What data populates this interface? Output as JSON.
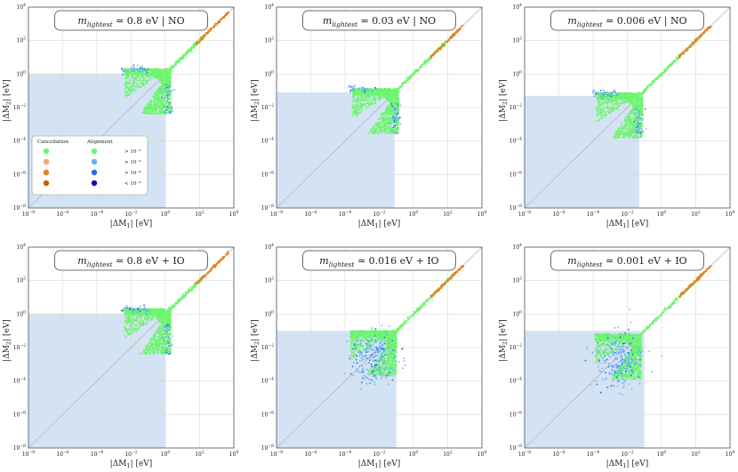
{
  "chart_data": [
    {
      "type": "scatter",
      "title_label": "m_lightest = 0.8 eV | NO",
      "title": {
        "mvar": "m",
        "sub": "lightest",
        "rest": " = 0.8 eV  |  NO"
      },
      "xlabel": {
        "pre": "|ΔM",
        "sub": "1",
        "post": "| [eV]"
      },
      "ylabel": {
        "pre": "|ΔM",
        "sub": "2",
        "post": "| [eV]"
      },
      "xlim_log10": [
        -8,
        4
      ],
      "ylim_log10": [
        -8,
        4
      ],
      "shaded_region_log10": {
        "x_max": 0.0,
        "y_max": 0.0
      },
      "ordering": "NO",
      "mlight": 0.8
    },
    {
      "type": "scatter",
      "title_label": "m_lightest = 0.03 eV | NO",
      "title": {
        "mvar": "m",
        "sub": "lightest",
        "rest": " = 0.03 eV  |  NO"
      },
      "xlabel": {
        "pre": "|ΔM",
        "sub": "1",
        "post": "| [eV]"
      },
      "ylabel": {
        "pre": "|ΔM",
        "sub": "2",
        "post": "| [eV]"
      },
      "xlim_log10": [
        -8,
        4
      ],
      "ylim_log10": [
        -8,
        4
      ],
      "shaded_region_log10": {
        "x_max": -1.1,
        "y_max": -1.1
      },
      "ordering": "NO",
      "mlight": 0.03
    },
    {
      "type": "scatter",
      "title_label": "m_lightest = 0.006 eV | NO",
      "title": {
        "mvar": "m",
        "sub": "lightest",
        "rest": " = 0.006 eV  |  NO"
      },
      "xlabel": {
        "pre": "|ΔM",
        "sub": "1",
        "post": "| [eV]"
      },
      "ylabel": {
        "pre": "|ΔM",
        "sub": "2",
        "post": "| [eV]"
      },
      "xlim_log10": [
        -8,
        4
      ],
      "ylim_log10": [
        -8,
        4
      ],
      "shaded_region_log10": {
        "x_max": -1.3,
        "y_max": -1.3
      },
      "ordering": "NO",
      "mlight": 0.006
    },
    {
      "type": "scatter",
      "title_label": "m_lightest = 0.8 eV + IO",
      "title": {
        "mvar": "m",
        "sub": "lightest",
        "rest": " = 0.8 eV + IO"
      },
      "xlabel": {
        "pre": "|ΔM",
        "sub": "1",
        "post": "| [eV]"
      },
      "ylabel": {
        "pre": "|ΔM",
        "sub": "2",
        "post": "| [eV]"
      },
      "xlim_log10": [
        -8,
        4
      ],
      "ylim_log10": [
        -8,
        4
      ],
      "shaded_region_log10": {
        "x_max": 0.0,
        "y_max": 0.0
      },
      "ordering": "IO",
      "mlight": 0.8
    },
    {
      "type": "scatter",
      "title_label": "m_lightest = 0.016 eV + IO",
      "title": {
        "mvar": "m",
        "sub": "lightest",
        "rest": " = 0.016 eV + IO"
      },
      "xlabel": {
        "pre": "|ΔM",
        "sub": "1",
        "post": "| [eV]"
      },
      "ylabel": {
        "pre": "|ΔM",
        "sub": "2",
        "post": "| [eV]"
      },
      "xlim_log10": [
        -8,
        4
      ],
      "ylim_log10": [
        -8,
        4
      ],
      "shaded_region_log10": {
        "x_max": -1.0,
        "y_max": -1.0
      },
      "ordering": "IO",
      "mlight": 0.016
    },
    {
      "type": "scatter",
      "title_label": "m_lightest = 0.001 eV + IO",
      "title": {
        "mvar": "m",
        "sub": "lightest",
        "rest": " = 0.001 eV + IO"
      },
      "xlabel": {
        "pre": "|ΔM",
        "sub": "1",
        "post": "| [eV]"
      },
      "ylabel": {
        "pre": "|ΔM",
        "sub": "2",
        "post": "| [eV]"
      },
      "xlim_log10": [
        -8,
        4
      ],
      "ylim_log10": [
        -8,
        4
      ],
      "shaded_region_log10": {
        "x_max": -1.0,
        "y_max": -1.0
      },
      "ordering": "IO",
      "mlight": 0.001
    }
  ],
  "tick_exponents": [
    -8,
    -6,
    -4,
    -2,
    0,
    2,
    4
  ],
  "tick_labels": [
    {
      "base": "10",
      "exp": "−8"
    },
    {
      "base": "10",
      "exp": "−6"
    },
    {
      "base": "10",
      "exp": "−4"
    },
    {
      "base": "10",
      "exp": "−2"
    },
    {
      "base": "10",
      "exp": "0"
    },
    {
      "base": "10",
      "exp": "2"
    },
    {
      "base": "10",
      "exp": "4"
    }
  ],
  "legend": {
    "panel_index": 0,
    "header_cancellation": "Cancellation",
    "header_alignment": "Alignment",
    "entries": [
      {
        "threshold_text": "> 10⁻²",
        "cancel_color": "#6ef56e",
        "align_color": "#6ef56e"
      },
      {
        "threshold_text": "> 10⁻³",
        "cancel_color": "#f4a86a",
        "align_color": "#6aaef5"
      },
      {
        "threshold_text": "> 10⁻⁴",
        "cancel_color": "#e8801e",
        "align_color": "#1f6fe8"
      },
      {
        "threshold_text": "< 10⁻⁴",
        "cancel_color": "#c0600a",
        "align_color": "#1010a8"
      }
    ]
  },
  "colors": {
    "shade": "#d3e3f3",
    "green": "#6ef56e",
    "orange": "#e8801e",
    "light_blue": "#6aaef5",
    "blue": "#1f6fe8",
    "diagonal": "#b5b5b5",
    "grid": "#d8d8d8"
  }
}
